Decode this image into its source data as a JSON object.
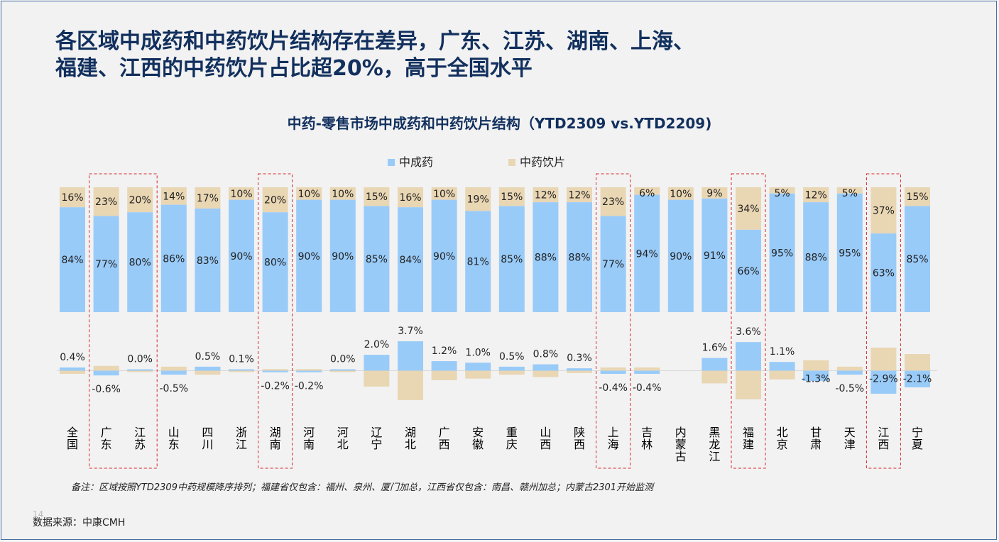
{
  "headline": {
    "line1": "各区域中成药和中药饮片结构存在差异，广东、江苏、湖南、上海、",
    "line2": "福建、江西的中药饮片占比超20%，高于全国水平"
  },
  "chart_data": {
    "type": "bar",
    "title": "中药-零售市场中成药和中药饮片结构（YTD2309 vs.YTD2209)",
    "legend": [
      "中成药",
      "中药饮片"
    ],
    "legend_position": "top-center",
    "colors": {
      "cpm": "#99cbf9",
      "tcm": "#e9d6b3",
      "highlight": "#d62728",
      "text": "#222222"
    },
    "categories": [
      "全国",
      "广东",
      "江苏",
      "山东",
      "四川",
      "浙江",
      "湖南",
      "河南",
      "河北",
      "辽宁",
      "湖北",
      "广西",
      "安徽",
      "重庆",
      "山西",
      "陕西",
      "上海",
      "吉林",
      "内蒙古",
      "黑龙江",
      "福建",
      "北京",
      "甘肃",
      "天津",
      "江西",
      "宁夏"
    ],
    "series": [
      {
        "name": "中成药",
        "values": [
          84,
          77,
          80,
          86,
          83,
          90,
          80,
          90,
          90,
          85,
          84,
          90,
          81,
          85,
          88,
          88,
          77,
          94,
          90,
          91,
          66,
          95,
          88,
          95,
          63,
          85
        ]
      },
      {
        "name": "中药饮片",
        "values": [
          16,
          23,
          20,
          14,
          17,
          10,
          20,
          10,
          10,
          15,
          16,
          10,
          19,
          15,
          12,
          12,
          23,
          6,
          10,
          9,
          34,
          5,
          12,
          5,
          37,
          15
        ]
      }
    ],
    "change_series": {
      "values": [
        0.4,
        -0.6,
        0.0,
        -0.5,
        0.5,
        0.1,
        -0.2,
        -0.2,
        0.0,
        2.0,
        3.7,
        1.2,
        1.0,
        0.5,
        0.8,
        0.3,
        -0.4,
        -0.4,
        null,
        1.6,
        3.6,
        1.1,
        -1.3,
        -0.5,
        -2.9,
        -2.1
      ],
      "labels": [
        "0.4%",
        "-0.6%",
        "0.0%",
        "-0.5%",
        "0.5%",
        "0.1%",
        "-0.2%",
        "-0.2%",
        "0.0%",
        "2.0%",
        "3.7%",
        "1.2%",
        "1.0%",
        "0.5%",
        "0.8%",
        "0.3%",
        "-0.4%",
        "-0.4%",
        "",
        "1.6%",
        "3.6%",
        "1.1%",
        "-1.3%",
        "-0.5%",
        "-2.9%",
        "-2.1%"
      ]
    },
    "highlighted_categories": [
      "广东",
      "江苏",
      "湖南",
      "上海",
      "福建",
      "江西"
    ]
  },
  "note": "备注：区域按照YTD2309中药规模降序排列；福建省仅包含：福州、泉州、厦门加总，江西省仅包含：南昌、赣州加总；内蒙古2301开始监测",
  "source": "数据来源：中康CMH",
  "page_number": "14"
}
